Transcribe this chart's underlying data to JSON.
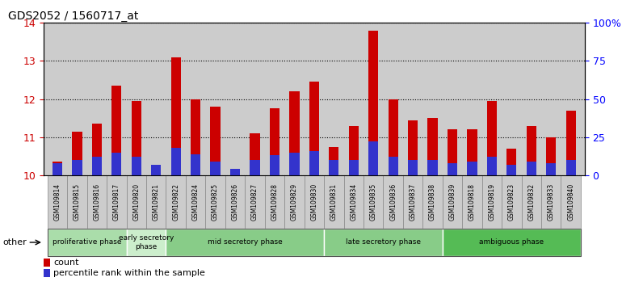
{
  "title": "GDS2052 / 1560717_at",
  "samples": [
    "GSM109814",
    "GSM109815",
    "GSM109816",
    "GSM109817",
    "GSM109820",
    "GSM109821",
    "GSM109822",
    "GSM109824",
    "GSM109825",
    "GSM109826",
    "GSM109827",
    "GSM109828",
    "GSM109829",
    "GSM109830",
    "GSM109831",
    "GSM109834",
    "GSM109835",
    "GSM109836",
    "GSM109837",
    "GSM109838",
    "GSM109839",
    "GSM109818",
    "GSM109819",
    "GSM109823",
    "GSM109832",
    "GSM109833",
    "GSM109840"
  ],
  "count_values": [
    10.35,
    11.15,
    11.35,
    12.35,
    11.95,
    10.15,
    13.1,
    12.0,
    11.8,
    10.1,
    11.1,
    11.75,
    12.2,
    12.45,
    10.75,
    11.3,
    13.8,
    12.0,
    11.45,
    11.5,
    11.2,
    11.2,
    11.95,
    10.7,
    11.3,
    11.0,
    11.7
  ],
  "percentile_values": [
    8,
    10,
    12,
    15,
    12,
    7,
    18,
    14,
    9,
    4,
    10,
    13,
    15,
    16,
    10,
    10,
    22,
    12,
    10,
    10,
    8,
    9,
    12,
    7,
    9,
    8,
    10
  ],
  "ylim": [
    10,
    14
  ],
  "y2lim": [
    0,
    100
  ],
  "yticks": [
    10,
    11,
    12,
    13,
    14
  ],
  "y2ticks": [
    0,
    25,
    50,
    75,
    100
  ],
  "y2tick_labels": [
    "0",
    "25",
    "50",
    "75",
    "100%"
  ],
  "count_color": "#cc0000",
  "percentile_color": "#3333cc",
  "bar_width": 0.5,
  "phases": [
    {
      "label": "proliferative phase",
      "start": 0,
      "end": 4,
      "color": "#aaddaa"
    },
    {
      "label": "early secretory\nphase",
      "start": 4,
      "end": 6,
      "color": "#cceecc"
    },
    {
      "label": "mid secretory phase",
      "start": 6,
      "end": 14,
      "color": "#88cc88"
    },
    {
      "label": "late secretory phase",
      "start": 14,
      "end": 20,
      "color": "#88cc88"
    },
    {
      "label": "ambiguous phase",
      "start": 20,
      "end": 27,
      "color": "#55bb55"
    }
  ],
  "ytick_color": "#cc0000",
  "background_color": "#cccccc",
  "tick_box_color": "#cccccc",
  "tick_box_border": "#888888"
}
